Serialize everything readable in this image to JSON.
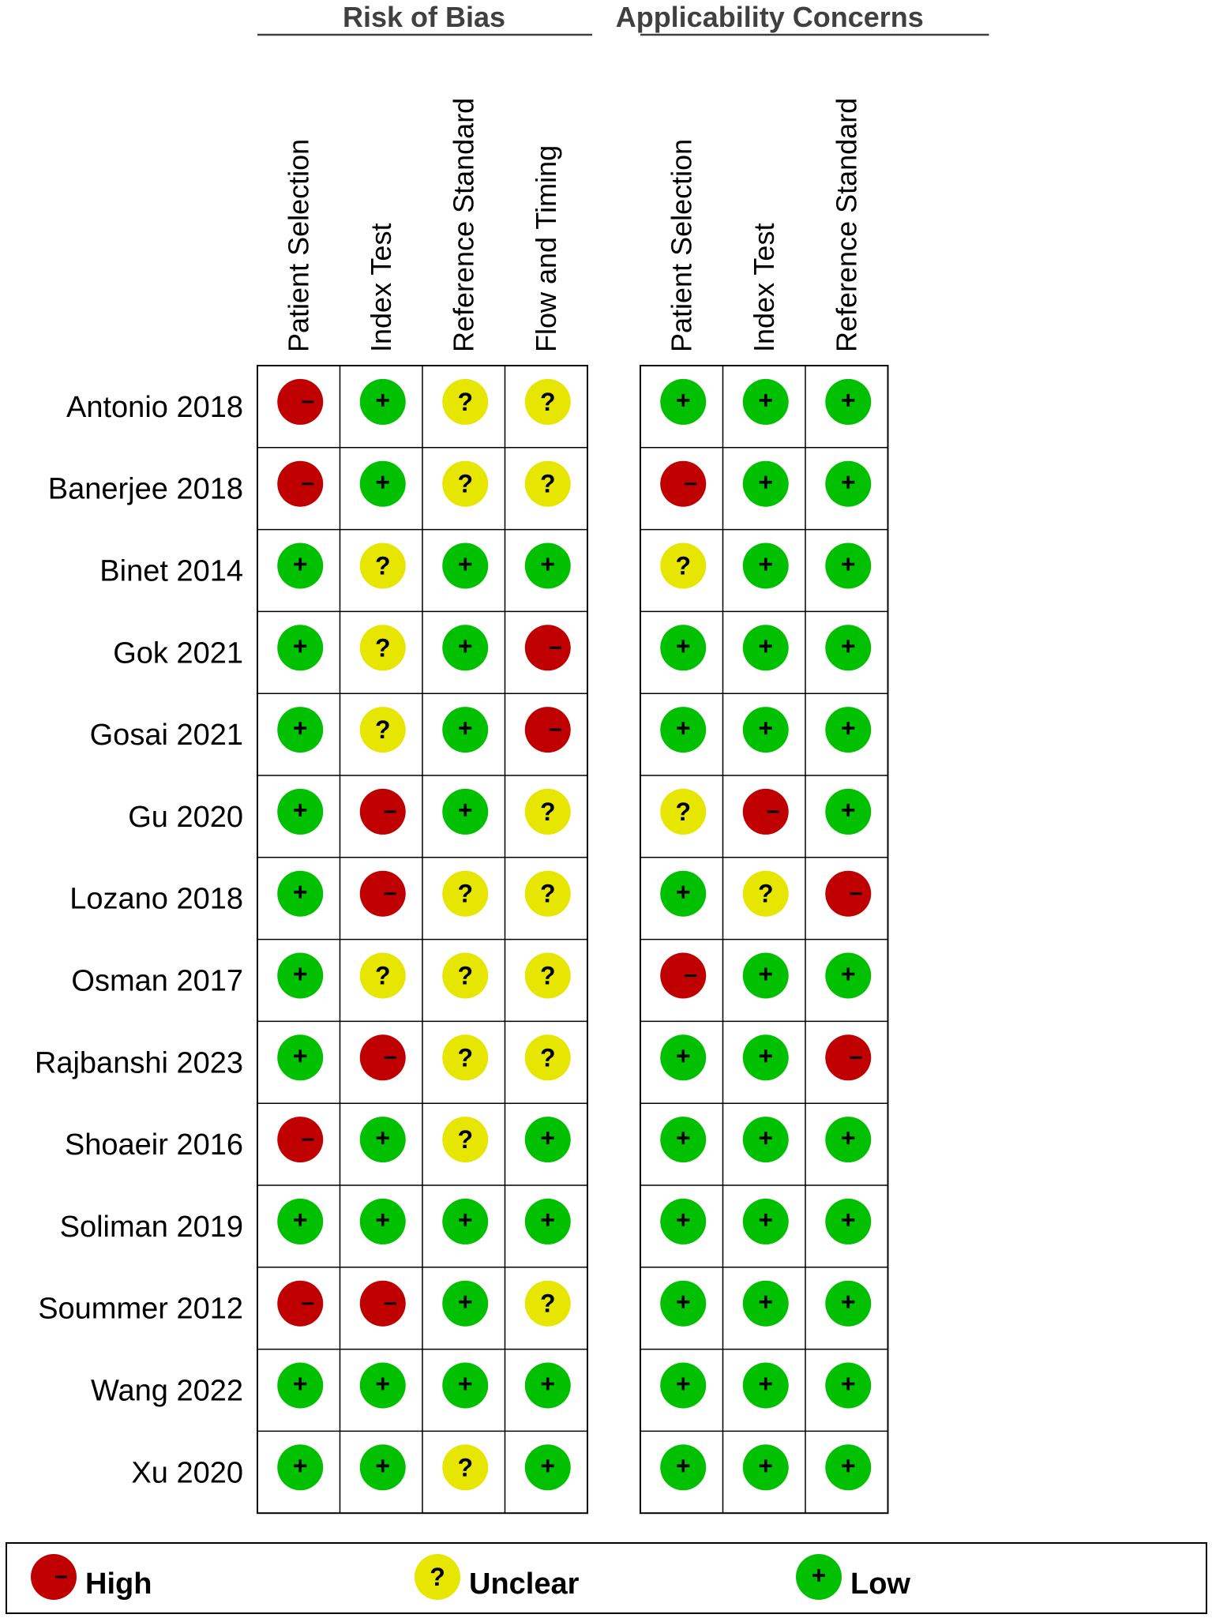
{
  "chart_data": {
    "type": "table",
    "title": "",
    "groups": [
      {
        "label": "Risk of Bias",
        "columns": [
          "Patient Selection",
          "Index Test",
          "Reference Standard",
          "Flow and Timing"
        ]
      },
      {
        "label": "Applicability Concerns",
        "columns": [
          "Patient Selection",
          "Index Test",
          "Reference Standard"
        ]
      }
    ],
    "rows": [
      {
        "study": "Antonio 2018",
        "risk": [
          "high",
          "low",
          "unclear",
          "unclear"
        ],
        "applicability": [
          "low",
          "low",
          "low"
        ]
      },
      {
        "study": "Banerjee 2018",
        "risk": [
          "high",
          "low",
          "unclear",
          "unclear"
        ],
        "applicability": [
          "high",
          "low",
          "low"
        ]
      },
      {
        "study": "Binet 2014",
        "risk": [
          "low",
          "unclear",
          "low",
          "low"
        ],
        "applicability": [
          "unclear",
          "low",
          "low"
        ]
      },
      {
        "study": "Gok 2021",
        "risk": [
          "low",
          "unclear",
          "low",
          "high"
        ],
        "applicability": [
          "low",
          "low",
          "low"
        ]
      },
      {
        "study": "Gosai 2021",
        "risk": [
          "low",
          "unclear",
          "low",
          "high"
        ],
        "applicability": [
          "low",
          "low",
          "low"
        ]
      },
      {
        "study": "Gu 2020",
        "risk": [
          "low",
          "high",
          "low",
          "unclear"
        ],
        "applicability": [
          "unclear",
          "high",
          "low"
        ]
      },
      {
        "study": "Lozano 2018",
        "risk": [
          "low",
          "high",
          "unclear",
          "unclear"
        ],
        "applicability": [
          "low",
          "unclear",
          "high"
        ]
      },
      {
        "study": "Osman 2017",
        "risk": [
          "low",
          "unclear",
          "unclear",
          "unclear"
        ],
        "applicability": [
          "high",
          "low",
          "low"
        ]
      },
      {
        "study": "Rajbanshi 2023",
        "risk": [
          "low",
          "high",
          "unclear",
          "unclear"
        ],
        "applicability": [
          "low",
          "low",
          "high"
        ]
      },
      {
        "study": "Shoaeir 2016",
        "risk": [
          "high",
          "low",
          "unclear",
          "low"
        ],
        "applicability": [
          "low",
          "low",
          "low"
        ]
      },
      {
        "study": "Soliman 2019",
        "risk": [
          "low",
          "low",
          "low",
          "low"
        ],
        "applicability": [
          "low",
          "low",
          "low"
        ]
      },
      {
        "study": "Soummer 2012",
        "risk": [
          "high",
          "high",
          "low",
          "unclear"
        ],
        "applicability": [
          "low",
          "low",
          "low"
        ]
      },
      {
        "study": "Wang 2022",
        "risk": [
          "low",
          "low",
          "low",
          "low"
        ],
        "applicability": [
          "low",
          "low",
          "low"
        ]
      },
      {
        "study": "Xu 2020",
        "risk": [
          "low",
          "low",
          "unclear",
          "low"
        ],
        "applicability": [
          "low",
          "low",
          "low"
        ]
      }
    ],
    "legend": [
      {
        "key": "high",
        "label": "High",
        "symbol": "–",
        "color": "#c00000",
        "icon": "minus-icon"
      },
      {
        "key": "unclear",
        "label": "Unclear",
        "symbol": "?",
        "color": "#e6e600",
        "icon": "question-icon"
      },
      {
        "key": "low",
        "label": "Low",
        "symbol": "+",
        "color": "#00c000",
        "icon": "plus-icon"
      }
    ],
    "legend_placement": "bottom",
    "grid": true
  }
}
